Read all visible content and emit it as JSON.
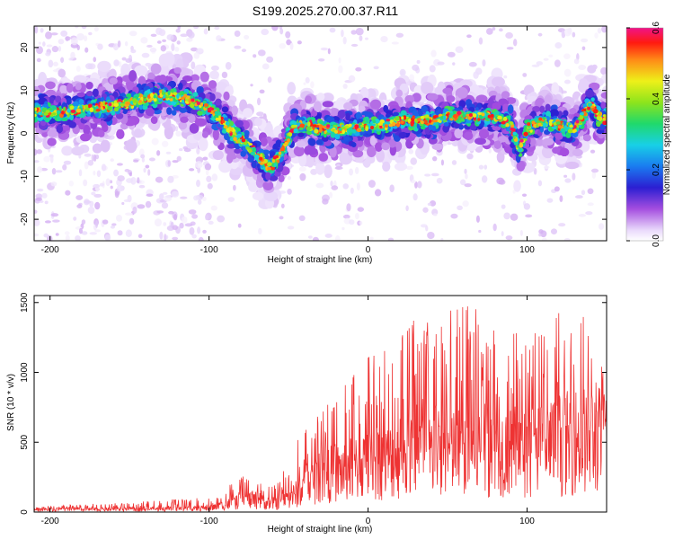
{
  "title": "S199.2025.270.00.37.R11",
  "chart_data": [
    {
      "type": "heatmap",
      "name": "spectrogram",
      "xlabel": "Height of straight line (km)",
      "ylabel": "Frequency (Hz)",
      "xlim": [
        -210,
        150
      ],
      "ylim": [
        -25,
        25
      ],
      "xticks": [
        -200,
        -100,
        0,
        100
      ],
      "yticks": [
        -20,
        -10,
        0,
        10,
        20
      ],
      "ridge": {
        "x": [
          -210,
          -190,
          -170,
          -150,
          -130,
          -115,
          -100,
          -92,
          -85,
          -78,
          -70,
          -62,
          -55,
          -48,
          -40,
          -30,
          -20,
          -10,
          0,
          10,
          20,
          30,
          40,
          50,
          60,
          70,
          80,
          90,
          95,
          100,
          110,
          120,
          130,
          140,
          145,
          150
        ],
        "y": [
          5,
          5,
          6,
          7,
          9,
          8,
          6,
          3,
          0,
          -2,
          -5,
          -8,
          -5,
          1,
          2,
          1,
          1,
          1,
          2,
          2,
          3,
          3,
          3,
          4,
          4,
          4,
          4,
          2,
          -4,
          1,
          3,
          2,
          1,
          7,
          4,
          3
        ]
      },
      "colorbar": {
        "label": "Normalized spectral amplitude",
        "min": 0.0,
        "max": 0.6,
        "ticks": [
          0.0,
          0.2,
          0.4,
          0.6
        ],
        "tick_labels": [
          "0.0",
          "0.2",
          "0.4",
          "0.6"
        ]
      }
    },
    {
      "type": "line",
      "name": "snr",
      "color": "#ee3333",
      "xlabel": "Height of straight line (km)",
      "ylabel": "SNR (10 * v/v)",
      "xlim": [
        -210,
        150
      ],
      "ylim": [
        0,
        1550
      ],
      "xticks": [
        -200,
        -100,
        0,
        100
      ],
      "yticks": [
        0,
        500,
        1000,
        1500
      ],
      "envelope": {
        "x": [
          -210,
          -150,
          -100,
          -90,
          -75,
          -60,
          -50,
          -42,
          -35,
          -30,
          -20,
          -10,
          0,
          10,
          20,
          30,
          40,
          50,
          60,
          70,
          80,
          90,
          100,
          110,
          120,
          130,
          140,
          150
        ],
        "base": [
          20,
          22,
          30,
          60,
          100,
          70,
          110,
          180,
          250,
          300,
          330,
          360,
          400,
          420,
          440,
          460,
          480,
          500,
          520,
          520,
          520,
          520,
          520,
          540,
          560,
          600,
          620,
          600
        ],
        "peak": [
          40,
          70,
          110,
          180,
          280,
          200,
          360,
          650,
          600,
          750,
          800,
          1000,
          1150,
          1200,
          1300,
          1500,
          1350,
          1450,
          1500,
          1450,
          1350,
          1300,
          1250,
          1400,
          1450,
          1500,
          1400,
          900
        ]
      }
    }
  ]
}
